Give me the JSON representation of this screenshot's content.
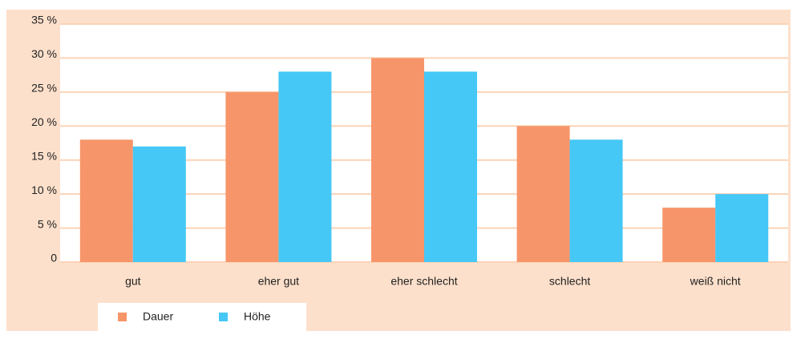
{
  "chart_data": {
    "type": "bar",
    "categories": [
      "gut",
      "eher gut",
      "eher schlecht",
      "schlecht",
      "weiß nicht"
    ],
    "series": [
      {
        "name": "Dauer",
        "color": "#f7956a",
        "values": [
          18,
          25,
          30,
          20,
          8
        ]
      },
      {
        "name": "Höhe",
        "color": "#45c8f5",
        "values": [
          17,
          28,
          28,
          18,
          10
        ]
      }
    ],
    "ylim": [
      0,
      35
    ],
    "yticks": [
      0,
      {
        "value": 5,
        "label": "5 %"
      },
      {
        "value": 10,
        "label": "10 %"
      },
      {
        "value": 15,
        "label": "15 %"
      },
      {
        "value": 20,
        "label": "20 %"
      },
      {
        "value": 25,
        "label": "25 %"
      },
      {
        "value": 30,
        "label": "30 %"
      },
      {
        "value": 35,
        "label": "35 %"
      }
    ],
    "grid": true,
    "legend": "bottom-left"
  }
}
